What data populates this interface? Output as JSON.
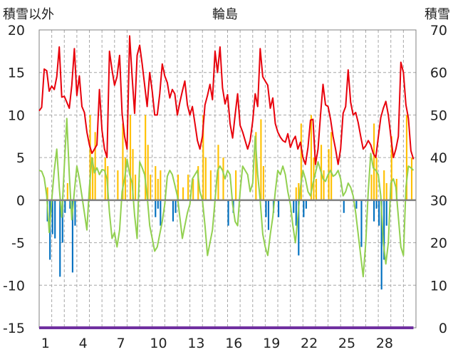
{
  "chart_data": {
    "type": "bar+line",
    "title": "輪島",
    "left_axis_label": "積雪以外",
    "right_axis_label": "積雪",
    "left_ylim": [
      -15,
      20
    ],
    "left_yticks": [
      20,
      15,
      10,
      5,
      0,
      -5,
      -10,
      -15
    ],
    "right_ylim": [
      0,
      70
    ],
    "right_yticks": [
      70,
      60,
      50,
      40,
      30,
      20,
      10,
      0
    ],
    "x_range": [
      0,
      30
    ],
    "x_ticks": [
      1,
      4,
      7,
      10,
      13,
      16,
      19,
      22,
      25,
      28
    ],
    "grid": "vertical dashed per day, horizontal dashed per major tick",
    "colors": {
      "red_line": "#e8000b",
      "green_line": "#92d050",
      "orange_bars": "#ffc000",
      "blue_bars": "#0070c0",
      "snow_depth": "#7030a0",
      "zero_line": "#808080"
    },
    "series": [
      {
        "color_key": "red_line",
        "kind": "line",
        "axis": "left",
        "x": [
          0,
          0.2,
          0.4,
          0.6,
          0.8,
          1.0,
          1.2,
          1.4,
          1.6,
          1.8,
          2.0,
          2.2,
          2.4,
          2.6,
          2.8,
          3.0,
          3.2,
          3.4,
          3.6,
          3.8,
          4.0,
          4.2,
          4.4,
          4.6,
          4.8,
          5.0,
          5.2,
          5.4,
          5.6,
          5.8,
          6.0,
          6.2,
          6.4,
          6.6,
          6.8,
          7.0,
          7.2,
          7.4,
          7.6,
          7.8,
          8.0,
          8.2,
          8.4,
          8.6,
          8.8,
          9.0,
          9.2,
          9.4,
          9.6,
          9.8,
          10.0,
          10.2,
          10.4,
          10.6,
          10.8,
          11.0,
          11.2,
          11.4,
          11.6,
          11.8,
          12.0,
          12.2,
          12.4,
          12.6,
          12.8,
          13.0,
          13.2,
          13.4,
          13.6,
          13.8,
          14.0,
          14.2,
          14.4,
          14.6,
          14.8,
          15.0,
          15.2,
          15.4,
          15.6,
          15.8,
          16.0,
          16.2,
          16.4,
          16.6,
          16.8,
          17.0,
          17.2,
          17.4,
          17.6,
          17.8,
          18.0,
          18.2,
          18.4,
          18.6,
          18.8,
          19.0,
          19.2,
          19.4,
          19.6,
          19.8,
          20.0,
          20.2,
          20.4,
          20.6,
          20.8,
          21.0,
          21.2,
          21.4,
          21.6,
          21.8,
          22.0,
          22.2,
          22.4,
          22.6,
          22.8,
          23.0,
          23.2,
          23.4,
          23.6,
          23.8,
          24.0,
          24.2,
          24.4,
          24.6,
          24.8,
          25.0,
          25.2,
          25.4,
          25.6,
          25.8,
          26.0,
          26.2,
          26.4,
          26.6,
          26.8,
          27.0,
          27.2,
          27.4,
          27.6,
          27.8,
          28.0,
          28.2,
          28.4,
          28.6,
          28.8,
          29.0,
          29.2,
          29.4,
          29.6,
          29.8
        ],
        "values": [
          10.5,
          10.9,
          15.4,
          15.2,
          12.8,
          13.4,
          13.0,
          14.5,
          18.0,
          12.1,
          12.2,
          11.5,
          10.8,
          13.5,
          17.8,
          12.3,
          14.6,
          11.0,
          10.3,
          8.0,
          6.5,
          5.5,
          6.0,
          6.5,
          13.0,
          8.2,
          6.0,
          5.0,
          17.5,
          15.3,
          13.5,
          14.5,
          17.0,
          10.2,
          7.5,
          6.0,
          19.3,
          14.5,
          10.2,
          17.0,
          18.2,
          16.0,
          13.5,
          11.0,
          15.0,
          12.8,
          10.0,
          10.0,
          12.5,
          16.0,
          14.6,
          13.8,
          12.0,
          13.0,
          12.5,
          10.0,
          11.5,
          12.8,
          14.0,
          11.2,
          10.0,
          11.0,
          9.0,
          7.0,
          6.0,
          7.5,
          11.2,
          12.3,
          13.6,
          11.8,
          17.5,
          15.0,
          18.0,
          13.2,
          11.3,
          12.4,
          9.0,
          7.3,
          10.0,
          12.5,
          8.8,
          8.0,
          7.0,
          6.0,
          7.0,
          9.3,
          12.5,
          11.0,
          17.8,
          14.5,
          14.0,
          13.5,
          10.8,
          12.0,
          9.0,
          8.0,
          7.4,
          7.0,
          6.8,
          7.8,
          6.2,
          7.0,
          7.5,
          6.0,
          6.8,
          5.0,
          4.2,
          6.2,
          9.4,
          9.5,
          4.2,
          6.0,
          10.0,
          13.6,
          11.2,
          11.0,
          9.5,
          7.5,
          6.0,
          4.2,
          6.0,
          10.2,
          11.0,
          15.3,
          11.5,
          10.0,
          10.3,
          9.1,
          7.5,
          6.0,
          6.4,
          7.0,
          6.5,
          5.5,
          5.0,
          7.4,
          9.7,
          10.8,
          11.6,
          10.0,
          7.5,
          5.0,
          6.0,
          7.5,
          16.2,
          15.0,
          11.2,
          9.6,
          5.8,
          4.8
        ]
      },
      {
        "color_key": "green_line",
        "kind": "line",
        "axis": "left",
        "x": [
          0,
          0.2,
          0.4,
          0.6,
          0.8,
          1.0,
          1.2,
          1.4,
          1.6,
          1.8,
          2.0,
          2.2,
          2.4,
          2.6,
          2.8,
          3.0,
          3.2,
          3.4,
          3.6,
          3.8,
          4.0,
          4.2,
          4.4,
          4.6,
          4.8,
          5.0,
          5.2,
          5.4,
          5.6,
          5.8,
          6.0,
          6.2,
          6.4,
          6.6,
          6.8,
          7.0,
          7.2,
          7.4,
          7.6,
          7.8,
          8.0,
          8.2,
          8.4,
          8.6,
          8.8,
          9.0,
          9.2,
          9.4,
          9.6,
          9.8,
          10.0,
          10.2,
          10.4,
          10.6,
          10.8,
          11.0,
          11.2,
          11.4,
          11.6,
          11.8,
          12.0,
          12.2,
          12.4,
          12.6,
          12.8,
          13.0,
          13.2,
          13.4,
          13.6,
          13.8,
          14.0,
          14.2,
          14.4,
          14.6,
          14.8,
          15.0,
          15.2,
          15.4,
          15.6,
          15.8,
          16.0,
          16.2,
          16.4,
          16.6,
          16.8,
          17.0,
          17.2,
          17.4,
          17.6,
          17.8,
          18.0,
          18.2,
          18.4,
          18.6,
          18.8,
          19.0,
          19.2,
          19.4,
          19.6,
          19.8,
          20.0,
          20.2,
          20.4,
          20.6,
          20.8,
          21.0,
          21.2,
          21.4,
          21.6,
          21.8,
          22.0,
          22.2,
          22.4,
          22.6,
          22.8,
          23.0,
          23.2,
          23.4,
          23.6,
          23.8,
          24.0,
          24.2,
          24.4,
          24.6,
          24.8,
          25.0,
          25.2,
          25.4,
          25.6,
          25.8,
          26.0,
          26.2,
          26.4,
          26.6,
          26.8,
          27.0,
          27.2,
          27.4,
          27.6,
          27.8,
          28.0,
          28.2,
          28.4,
          28.6,
          28.8,
          29.0,
          29.2,
          29.4,
          29.6,
          29.8
        ],
        "values": [
          3.5,
          3.4,
          2.6,
          0.5,
          -3.8,
          0.0,
          3.5,
          6.0,
          1.5,
          -2.0,
          4.0,
          9.6,
          3.0,
          -2.3,
          1.0,
          4.0,
          2.5,
          0.5,
          -1.5,
          -3.5,
          1.5,
          5.0,
          3.2,
          3.8,
          3.0,
          3.6,
          3.5,
          2.5,
          -1.5,
          -4.5,
          -3.8,
          -5.5,
          -3.5,
          1.0,
          2.5,
          4.8,
          3.0,
          2.0,
          -1.8,
          -4.5,
          4.5,
          3.8,
          3.0,
          0.5,
          -3.0,
          -4.5,
          -6.0,
          -5.5,
          -4.0,
          -2.5,
          -0.5,
          2.8,
          3.5,
          3.0,
          1.8,
          0.5,
          -2.0,
          -4.5,
          -3.0,
          -1.5,
          -0.5,
          2.5,
          3.0,
          3.5,
          1.0,
          0.0,
          -3.0,
          -6.5,
          -5.0,
          -3.5,
          0.0,
          3.5,
          4.0,
          3.5,
          2.5,
          3.5,
          3.0,
          -0.5,
          -2.5,
          -3.0,
          1.0,
          4.0,
          3.5,
          3.0,
          1.0,
          2.0,
          7.5,
          3.0,
          0.0,
          -4.0,
          -5.5,
          -6.5,
          -4.0,
          -2.0,
          1.0,
          3.5,
          3.0,
          4.0,
          3.0,
          1.0,
          -0.5,
          -3.0,
          -5.0,
          -2.0,
          1.5,
          3.5,
          2.5,
          1.0,
          0.5,
          2.0,
          3.2,
          4.5,
          3.5,
          2.5,
          2.2,
          3.0,
          3.5,
          2.8,
          3.0,
          3.5,
          2.5,
          0.5,
          1.0,
          2.0,
          1.5,
          0.5,
          -1.5,
          -4.0,
          -6.5,
          -9.0,
          -5.0,
          1.0,
          5.5,
          3.8,
          3.5,
          3.0,
          0.5,
          -5.0,
          -7.5,
          -5.0,
          2.0,
          2.5,
          1.5,
          -2.0,
          -5.5,
          -6.5,
          1.5,
          4.0,
          3.8,
          3.5
        ]
      },
      {
        "color_key": "orange_bars",
        "kind": "bars",
        "axis": "left",
        "x": [
          0.6,
          2.2,
          4.0,
          4.2,
          4.4,
          5.2,
          5.4,
          6.2,
          6.6,
          6.8,
          7.2,
          7.4,
          7.6,
          8.4,
          8.6,
          8.8,
          9.2,
          9.4,
          9.6,
          11.0,
          11.4,
          11.8,
          12.2,
          12.6,
          13.0,
          13.2,
          13.6,
          14.2,
          14.6,
          15.6,
          17.2,
          17.6,
          17.8,
          20.4,
          20.6,
          20.8,
          21.6,
          21.8,
          22.0,
          22.4,
          22.6,
          23.0,
          23.2,
          26.4,
          26.6,
          26.8,
          27.4,
          27.6,
          28.0,
          28.4,
          29.2,
          29.6
        ],
        "values": [
          1.5,
          2.0,
          10.0,
          5.0,
          8.0,
          5.0,
          4.0,
          3.5,
          9.0,
          5.0,
          10.0,
          6.0,
          3.0,
          10.0,
          6.5,
          3.0,
          4.0,
          2.5,
          3.5,
          3.0,
          1.5,
          3.0,
          2.5,
          4.0,
          10.0,
          5.0,
          3.5,
          6.5,
          5.0,
          3.5,
          8.0,
          9.5,
          4.0,
          1.5,
          2.0,
          9.0,
          10.0,
          5.0,
          2.5,
          6.5,
          3.5,
          6.0,
          8.0,
          3.0,
          9.0,
          5.0,
          3.5,
          2.0,
          7.5,
          2.5,
          10.0,
          5.0
        ]
      },
      {
        "color_key": "blue_bars",
        "kind": "bars",
        "axis": "left",
        "x": [
          0.6,
          0.8,
          1.0,
          1.2,
          1.6,
          1.8,
          2.0,
          2.4,
          2.6,
          2.8,
          9.2,
          9.4,
          9.6,
          10.6,
          10.8,
          15.0,
          15.4,
          18.0,
          18.2,
          18.6,
          19.0,
          20.2,
          20.4,
          20.6,
          21.0,
          21.2,
          24.2,
          25.2,
          25.6,
          26.6,
          26.8,
          27.0,
          27.2,
          27.4,
          27.6
        ],
        "values": [
          -2.5,
          -7.0,
          -4.0,
          -4.5,
          -9.0,
          -5.0,
          -1.5,
          -1.0,
          -8.5,
          -3.0,
          -2.0,
          -1.0,
          -3.0,
          -2.5,
          -1.5,
          -3.0,
          -1.5,
          -2.0,
          -3.5,
          -1.5,
          -2.0,
          -1.5,
          -3.0,
          -6.5,
          -2.0,
          -1.0,
          -1.5,
          -1.0,
          -5.5,
          -2.5,
          -1.0,
          -3.0,
          -10.5,
          -7.0,
          -3.0
        ]
      },
      {
        "color_key": "snow_depth",
        "kind": "line",
        "axis": "right",
        "x": [
          0,
          29.8
        ],
        "values": [
          0,
          0
        ]
      }
    ]
  }
}
